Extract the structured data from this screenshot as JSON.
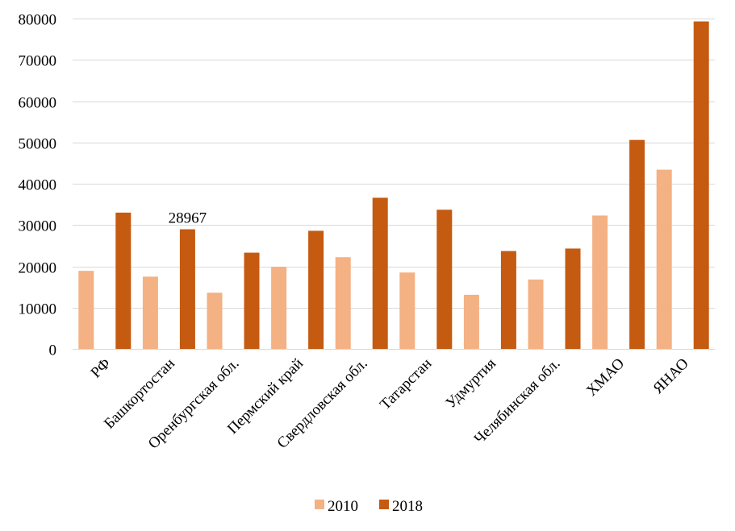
{
  "chart_data": {
    "type": "bar",
    "categories": [
      "РФ",
      "Башкортостан",
      "Оренбургская обл.",
      "Пермский край",
      "Свердловская обл.",
      "Татарстан",
      "Удмуртия",
      "Челябинская обл.",
      "ХМАО",
      "ЯНАО"
    ],
    "series": [
      {
        "name": "2010",
        "color": "#F4B183",
        "values": [
          18900,
          17500,
          13600,
          19900,
          22200,
          18500,
          13100,
          16800,
          32300,
          43400
        ]
      },
      {
        "name": "2018",
        "color": "#C55A11",
        "values": [
          33000,
          28967,
          23300,
          28600,
          36600,
          33700,
          23700,
          24300,
          50600,
          79300
        ]
      }
    ],
    "data_labels": [
      {
        "series": 1,
        "index": 1,
        "text": "28967"
      }
    ],
    "yticks": [
      0,
      10000,
      20000,
      30000,
      40000,
      50000,
      60000,
      70000,
      80000
    ],
    "ylim": [
      0,
      80000
    ],
    "grid": true,
    "legend_position": "bottom",
    "gridline_color": "#D9D9D9",
    "axis_color": "#D9D9D9"
  }
}
